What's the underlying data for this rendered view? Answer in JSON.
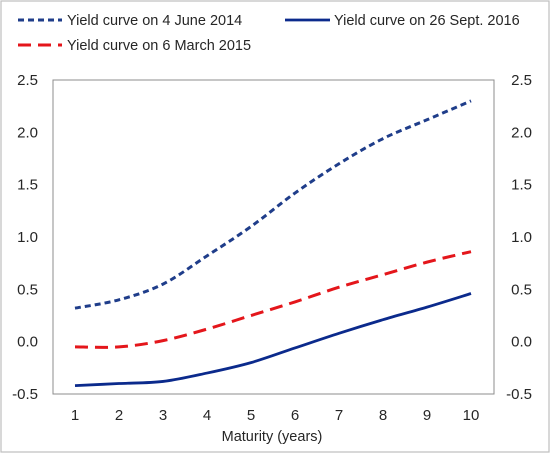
{
  "chart_data": {
    "type": "line",
    "xlabel": "Maturity (years)",
    "ylabel": "",
    "x": [
      1,
      2,
      3,
      4,
      5,
      6,
      7,
      8,
      9,
      10
    ],
    "ylim": [
      -0.5,
      2.5
    ],
    "yticks": [
      "-0.5",
      "0.0",
      "0.5",
      "1.0",
      "1.5",
      "2.0",
      "2.5"
    ],
    "xticks": [
      "1",
      "2",
      "3",
      "4",
      "5",
      "6",
      "7",
      "8",
      "9",
      "10"
    ],
    "grid": false,
    "legend_position": "top",
    "series": [
      {
        "name": "Yield curve on 4 June 2014",
        "color": "#1f3d8a",
        "style": "dotted",
        "values": [
          0.32,
          0.4,
          0.55,
          0.82,
          1.1,
          1.42,
          1.7,
          1.94,
          2.12,
          2.3
        ]
      },
      {
        "name": "Yield curve on 6 March 2015",
        "color": "#e4161b",
        "style": "dashed",
        "values": [
          -0.05,
          -0.05,
          0.01,
          0.12,
          0.25,
          0.38,
          0.52,
          0.64,
          0.76,
          0.86
        ]
      },
      {
        "name": "Yield curve on 26 Sept. 2016",
        "color": "#0b2a8c",
        "style": "solid",
        "values": [
          -0.42,
          -0.4,
          -0.38,
          -0.3,
          -0.2,
          -0.06,
          0.08,
          0.21,
          0.33,
          0.46
        ]
      }
    ]
  }
}
